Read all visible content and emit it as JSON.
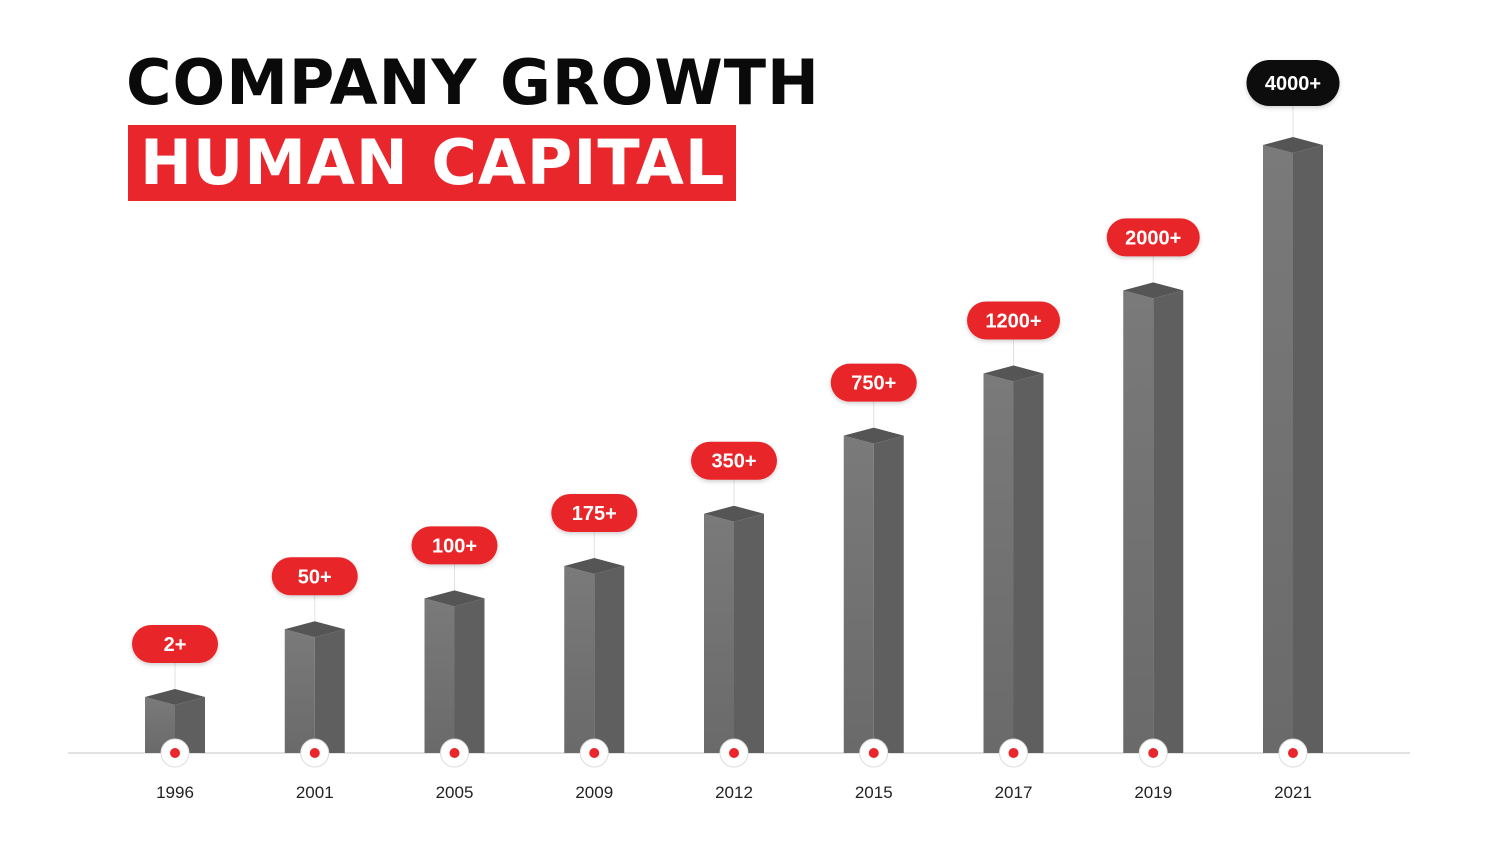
{
  "header": {
    "title": "COMPANY GROWTH",
    "subtitle": "HUMAN CAPITAL"
  },
  "colors": {
    "accent": "#e8262b",
    "highlight": "#0d0d0d",
    "bar_front": "#727272",
    "bar_side": "#5f5f5f",
    "bar_top": "#555555",
    "axis": "#d9d9d9"
  },
  "chart_data": {
    "type": "bar",
    "title": "COMPANY GROWTH",
    "subtitle": "HUMAN CAPITAL",
    "categories": [
      "1996",
      "2001",
      "2005",
      "2009",
      "2012",
      "2015",
      "2017",
      "2019",
      "2021"
    ],
    "labels": [
      "2+",
      "50+",
      "100+",
      "175+",
      "350+",
      "750+",
      "1200+",
      "2000+",
      "4000+"
    ],
    "values": [
      2,
      50,
      100,
      175,
      350,
      750,
      1200,
      2000,
      4000
    ],
    "highlight_index": 8,
    "grid": false,
    "legend": "none"
  }
}
